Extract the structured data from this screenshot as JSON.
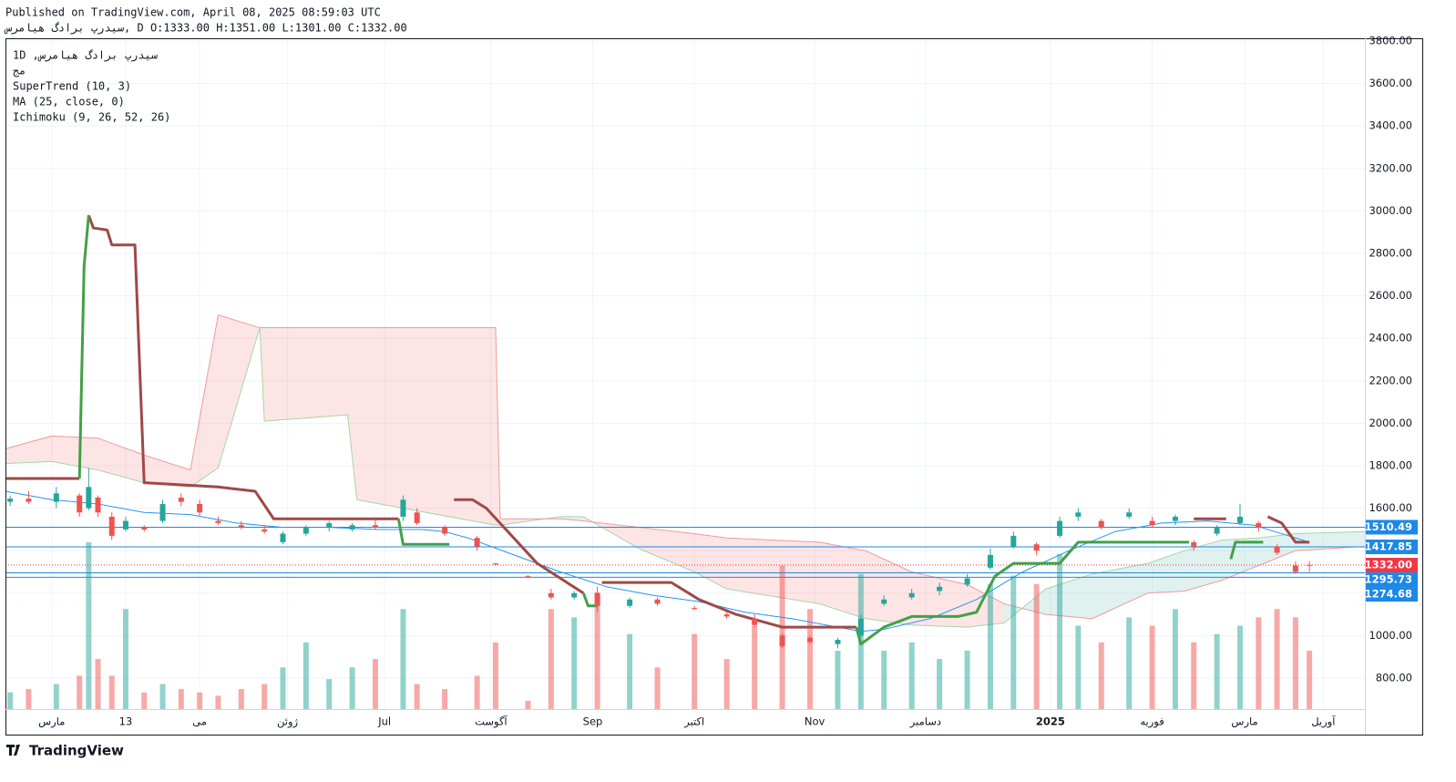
{
  "header": {
    "published": "Published on TradingView.com, April 08, 2025 08:59:03 UTC",
    "ohlc": "سیدرپ برادگ هیامرس, D O:1333.00 H:1351.00 L:1301.00 C:1332.00"
  },
  "legend": [
    "1D ,سیدرپ برادگ هیامرس",
    "مج",
    "SuperTrend (10, 3)",
    "MA (25, close, 0)",
    "Ichimoku (9, 26, 52, 26)"
  ],
  "footer": {
    "logo": "TradingView"
  },
  "chart_data": {
    "type": "candlestick",
    "x": [
      1,
      5,
      11,
      16,
      18,
      20,
      23,
      26,
      30,
      34,
      38,
      42,
      46,
      51,
      56,
      60,
      65,
      70,
      75,
      80,
      86,
      89,
      95,
      102,
      106,
      113,
      118,
      123,
      128,
      135,
      141,
      149,
      156,
      162,
      168,
      174,
      180,
      185,
      190,
      196,
      202,
      208,
      213,
      218,
      223,
      228,
      232,
      237,
      243,
      248,
      253,
      257,
      262,
      267,
      271,
      275,
      279,
      282
    ],
    "open": [
      1630,
      1645,
      1630,
      1660,
      1600,
      1650,
      1560,
      1500,
      1510,
      1540,
      1650,
      1620,
      1540,
      1520,
      1500,
      1440,
      1480,
      1510,
      1500,
      1520,
      1560,
      1580,
      1510,
      1460,
      1340,
      1280,
      1200,
      1180,
      1200,
      1140,
      1170,
      1130,
      1100,
      1080,
      1000,
      990,
      960,
      1000,
      1150,
      1180,
      1210,
      1240,
      1320,
      1420,
      1430,
      1470,
      1560,
      1540,
      1560,
      1540,
      1540,
      1440,
      1480,
      1530,
      1530,
      1420,
      1330,
      1333
    ],
    "high": [
      1660,
      1680,
      1700,
      1670,
      1790,
      1660,
      1580,
      1560,
      1520,
      1640,
      1670,
      1640,
      1560,
      1540,
      1520,
      1490,
      1520,
      1540,
      1530,
      1550,
      1660,
      1600,
      1520,
      1470,
      1340,
      1285,
      1220,
      1210,
      1230,
      1180,
      1180,
      1140,
      1110,
      1100,
      1010,
      1000,
      990,
      1100,
      1190,
      1220,
      1250,
      1290,
      1410,
      1490,
      1440,
      1560,
      1600,
      1550,
      1600,
      1560,
      1570,
      1450,
      1520,
      1620,
      1540,
      1430,
      1350,
      1351
    ],
    "low": [
      1610,
      1620,
      1600,
      1560,
      1590,
      1560,
      1450,
      1490,
      1490,
      1530,
      1610,
      1560,
      1520,
      1500,
      1480,
      1430,
      1470,
      1490,
      1490,
      1500,
      1540,
      1520,
      1470,
      1400,
      1330,
      1270,
      1170,
      1170,
      1110,
      1130,
      1140,
      1120,
      1080,
      1040,
      940,
      960,
      940,
      990,
      1140,
      1170,
      1190,
      1230,
      1310,
      1410,
      1380,
      1460,
      1540,
      1500,
      1550,
      1510,
      1520,
      1400,
      1470,
      1520,
      1490,
      1380,
      1290,
      1301
    ],
    "close": [
      1645,
      1630,
      1670,
      1580,
      1700,
      1580,
      1470,
      1540,
      1500,
      1620,
      1630,
      1580,
      1530,
      1510,
      1490,
      1480,
      1510,
      1530,
      1520,
      1510,
      1640,
      1530,
      1480,
      1420,
      1335,
      1275,
      1180,
      1200,
      1140,
      1170,
      1150,
      1125,
      1090,
      1050,
      950,
      970,
      980,
      1080,
      1170,
      1200,
      1230,
      1270,
      1380,
      1470,
      1400,
      1540,
      1580,
      1510,
      1580,
      1520,
      1560,
      1420,
      1510,
      1560,
      1510,
      1390,
      1300,
      1332
    ],
    "volume": [
      10,
      12,
      15,
      20,
      100,
      30,
      20,
      60,
      10,
      15,
      12,
      10,
      8,
      12,
      15,
      25,
      40,
      18,
      25,
      30,
      60,
      15,
      12,
      20,
      40,
      5,
      60,
      55,
      70,
      45,
      25,
      45,
      30,
      50,
      86,
      60,
      35,
      81,
      35,
      40,
      30,
      35,
      75,
      80,
      75,
      93,
      50,
      40,
      55,
      50,
      60,
      40,
      45,
      50,
      55,
      60,
      55,
      35
    ],
    "volume_lim": [
      0,
      100
    ],
    "up_color": "#26a69a",
    "down_color": "#ef5350",
    "supertrend": {
      "x": [
        0,
        16,
        17,
        18,
        19,
        22,
        23,
        28,
        30,
        46,
        54,
        58,
        85,
        86,
        96,
        97,
        101,
        104,
        115,
        125,
        126,
        128,
        129,
        144,
        150,
        158,
        168,
        184,
        185,
        190,
        196,
        206,
        210,
        214,
        218,
        228,
        232,
        256,
        257,
        264,
        265,
        266,
        272,
        273,
        276,
        279,
        282
      ],
      "down": [
        1740,
        1740,
        null,
        2980,
        2920,
        2910,
        2840,
        2840,
        1720,
        1700,
        1680,
        1550,
        1550,
        null,
        null,
        1640,
        1640,
        1600,
        1340,
        1200,
        null,
        null,
        1250,
        1250,
        1170,
        1100,
        1040,
        1040,
        null,
        null,
        null,
        null,
        null,
        null,
        null,
        null,
        null,
        null,
        1550,
        1550,
        null,
        null,
        null,
        1560,
        1530,
        1440,
        1440
      ],
      "up": [
        null,
        1740,
        2740,
        2980,
        null,
        null,
        null,
        null,
        null,
        null,
        null,
        null,
        1550,
        1430,
        1430,
        null,
        null,
        null,
        null,
        1200,
        1140,
        1140,
        null,
        null,
        null,
        null,
        null,
        1040,
        960,
        1040,
        1090,
        1090,
        1110,
        1280,
        1340,
        1340,
        1440,
        1440,
        null,
        null,
        1360,
        1440,
        1440,
        null,
        null,
        null,
        null
      ],
      "down_color": "#a04848",
      "up_color": "#43a047"
    },
    "ma": {
      "x": [
        0,
        10,
        20,
        30,
        40,
        50,
        60,
        70,
        80,
        90,
        95,
        100,
        110,
        120,
        130,
        140,
        150,
        160,
        170,
        180,
        185,
        190,
        200,
        210,
        220,
        230,
        240,
        250,
        260,
        270,
        276,
        282
      ],
      "values": [
        1680,
        1640,
        1620,
        1580,
        1570,
        1530,
        1510,
        1510,
        1500,
        1500,
        1490,
        1460,
        1380,
        1300,
        1230,
        1190,
        1160,
        1110,
        1080,
        1040,
        1020,
        1030,
        1080,
        1170,
        1300,
        1400,
        1490,
        1530,
        1540,
        1520,
        1480,
        1440
      ],
      "color": "#2196f3"
    },
    "ichimoku": {
      "x": [
        0,
        10,
        20,
        30,
        40,
        46,
        55,
        56,
        74,
        76,
        106,
        107,
        120,
        125,
        137,
        149,
        156,
        176,
        186,
        196,
        208,
        216,
        225,
        235,
        247,
        255,
        263,
        271,
        279,
        294
      ],
      "span_a": [
        1810,
        1820,
        1780,
        1720,
        1700,
        1790,
        2450,
        2010,
        2040,
        1640,
        1520,
        1520,
        1560,
        1560,
        1410,
        1300,
        1220,
        1150,
        1080,
        1050,
        1040,
        1060,
        1220,
        1290,
        1340,
        1400,
        1450,
        1460,
        1480,
        1490
      ],
      "span_b": [
        1880,
        1940,
        1930,
        1850,
        1780,
        2510,
        2450,
        2450,
        2450,
        2450,
        2450,
        1550,
        1550,
        1540,
        1510,
        1480,
        1460,
        1440,
        1400,
        1300,
        1240,
        1150,
        1100,
        1080,
        1200,
        1210,
        1260,
        1330,
        1400,
        1420
      ],
      "span_a_color": "#a5d6a7",
      "span_b_color": "#ef9a9a"
    },
    "price_lines": [
      1510.49,
      1417.85,
      1295.73,
      1274.68
    ],
    "price_line_color": "#1e88e5",
    "last_price": {
      "value": 1332,
      "label": "1332.00"
    },
    "last_price_color": "#f23645",
    "xlim": [
      0,
      294
    ],
    "xticks": [
      {
        "value": 10,
        "label": "مارس"
      },
      {
        "value": 26,
        "label": "13"
      },
      {
        "value": 42,
        "label": "می"
      },
      {
        "value": 61,
        "label": "ژوئن"
      },
      {
        "value": 82,
        "label": "Jul"
      },
      {
        "value": 105,
        "label": "آگوست"
      },
      {
        "value": 127,
        "label": "Sep"
      },
      {
        "value": 149,
        "label": "اکتبر"
      },
      {
        "value": 175,
        "label": "Nov"
      },
      {
        "value": 199,
        "label": "دسامبر"
      },
      {
        "value": 226,
        "label": "2025"
      },
      {
        "value": 248,
        "label": "فوریه"
      },
      {
        "value": 268,
        "label": "مارس"
      },
      {
        "value": 285,
        "label": "آوریل"
      }
    ],
    "ylim": [
      654,
      3813
    ],
    "yticks": [
      {
        "value": 800,
        "label": "800.00"
      },
      {
        "value": 1000,
        "label": "1000.00"
      },
      {
        "value": 1200,
        "label": "1200.00"
      },
      {
        "value": 1400,
        "label": "1400.00"
      },
      {
        "value": 1600,
        "label": "1600.00"
      },
      {
        "value": 1800,
        "label": "1800.00"
      },
      {
        "value": 2000,
        "label": "2000.00"
      },
      {
        "value": 2200,
        "label": "2200.00"
      },
      {
        "value": 2400,
        "label": "2400.00"
      },
      {
        "value": 2600,
        "label": "2600.00"
      },
      {
        "value": 2800,
        "label": "2800.00"
      },
      {
        "value": 3000,
        "label": "3000.00"
      },
      {
        "value": 3200,
        "label": "3200.00"
      },
      {
        "value": 3400,
        "label": "3400.00"
      },
      {
        "value": 3600,
        "label": "3600.00"
      },
      {
        "value": 3800,
        "label": "3800.00"
      }
    ],
    "grid": true
  }
}
